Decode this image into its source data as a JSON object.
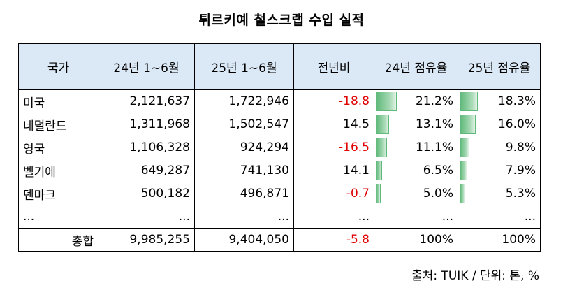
{
  "title": "튀르키예 철스크랩 수입 실적",
  "headers": [
    "국가",
    "24년 1~6월",
    "25년 1~6월",
    "전년비",
    "24년 점유율",
    "25년 점유율"
  ],
  "rows": [
    {
      "country": "미국",
      "v24": "2,121,637",
      "v25": "1,722,946",
      "yoy": "-18.8",
      "s24": "21.2%",
      "s25": "18.3%",
      "s24_val": 21.2,
      "s25_val": 18.3,
      "yoy_negative": true
    },
    {
      "country": "네덜란드",
      "v24": "1,311,968",
      "v25": "1,502,547",
      "yoy": "14.5",
      "s24": "13.1%",
      "s25": "16.0%",
      "s24_val": 13.1,
      "s25_val": 16.0,
      "yoy_negative": false
    },
    {
      "country": "영국",
      "v24": "1,106,328",
      "v25": "924,294",
      "yoy": "-16.5",
      "s24": "11.1%",
      "s25": "9.8%",
      "s24_val": 11.1,
      "s25_val": 9.8,
      "yoy_negative": true
    },
    {
      "country": "벨기에",
      "v24": "649,287",
      "v25": "741,130",
      "yoy": "14.1",
      "s24": "6.5%",
      "s25": "7.9%",
      "s24_val": 6.5,
      "s25_val": 7.9,
      "yoy_negative": false
    },
    {
      "country": "덴마크",
      "v24": "500,182",
      "v25": "496,871",
      "yoy": "-0.7",
      "s24": "5.0%",
      "s25": "5.3%",
      "s24_val": 5.0,
      "s25_val": 5.3,
      "yoy_negative": true
    }
  ],
  "ellipsis": "...",
  "total": {
    "label": "총합",
    "v24": "9,985,255",
    "v25": "9,404,050",
    "yoy": "-5.8",
    "s24": "100%",
    "s25": "100%"
  },
  "source": "출처: TUIK / 단위: 톤, %",
  "colors": {
    "header_bg": "#dbe8f5",
    "negative": "#e00000",
    "bar": "#5fb97a"
  }
}
